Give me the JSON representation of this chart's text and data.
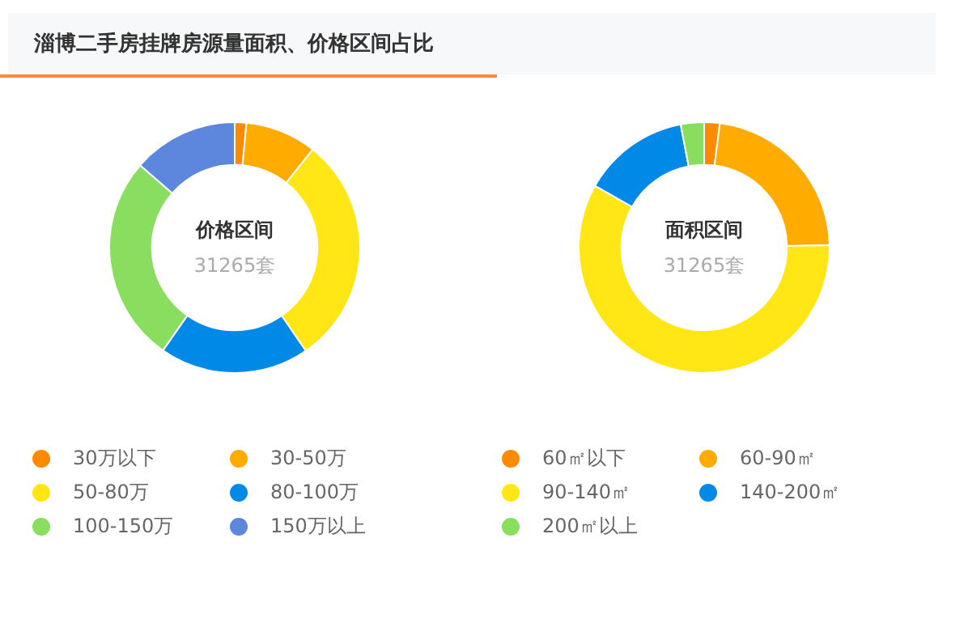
{
  "chart_data": [
    {
      "type": "donut",
      "title": "淄博二手房挂牌房源量面积、价格区间占比",
      "annotations": [
        "价格区间",
        "31265套"
      ],
      "legend": "bottom",
      "categories": [
        "30万以下",
        "30-50万",
        "50-80万",
        "80-100万",
        "100-150万",
        "150万以上"
      ],
      "values": [
        1.5,
        9.2,
        29.7,
        19.3,
        26.7,
        13.6
      ],
      "colors": [
        "#ff8a00",
        "#ffab00",
        "#ffe614",
        "#0089e6",
        "#8ade5f",
        "#5d87dc"
      ]
    },
    {
      "type": "donut",
      "annotations": [
        "面积区间",
        "31265套"
      ],
      "legend": "bottom",
      "categories": [
        "60㎡以下",
        "60-90㎡",
        "90-140㎡",
        "140-200㎡",
        "200㎡以上"
      ],
      "values": [
        2.0,
        22.7,
        58.5,
        13.8,
        3.0
      ],
      "colors": [
        "#ff8a00",
        "#ffab00",
        "#ffe614",
        "#0089e6",
        "#8ade5f"
      ]
    }
  ]
}
